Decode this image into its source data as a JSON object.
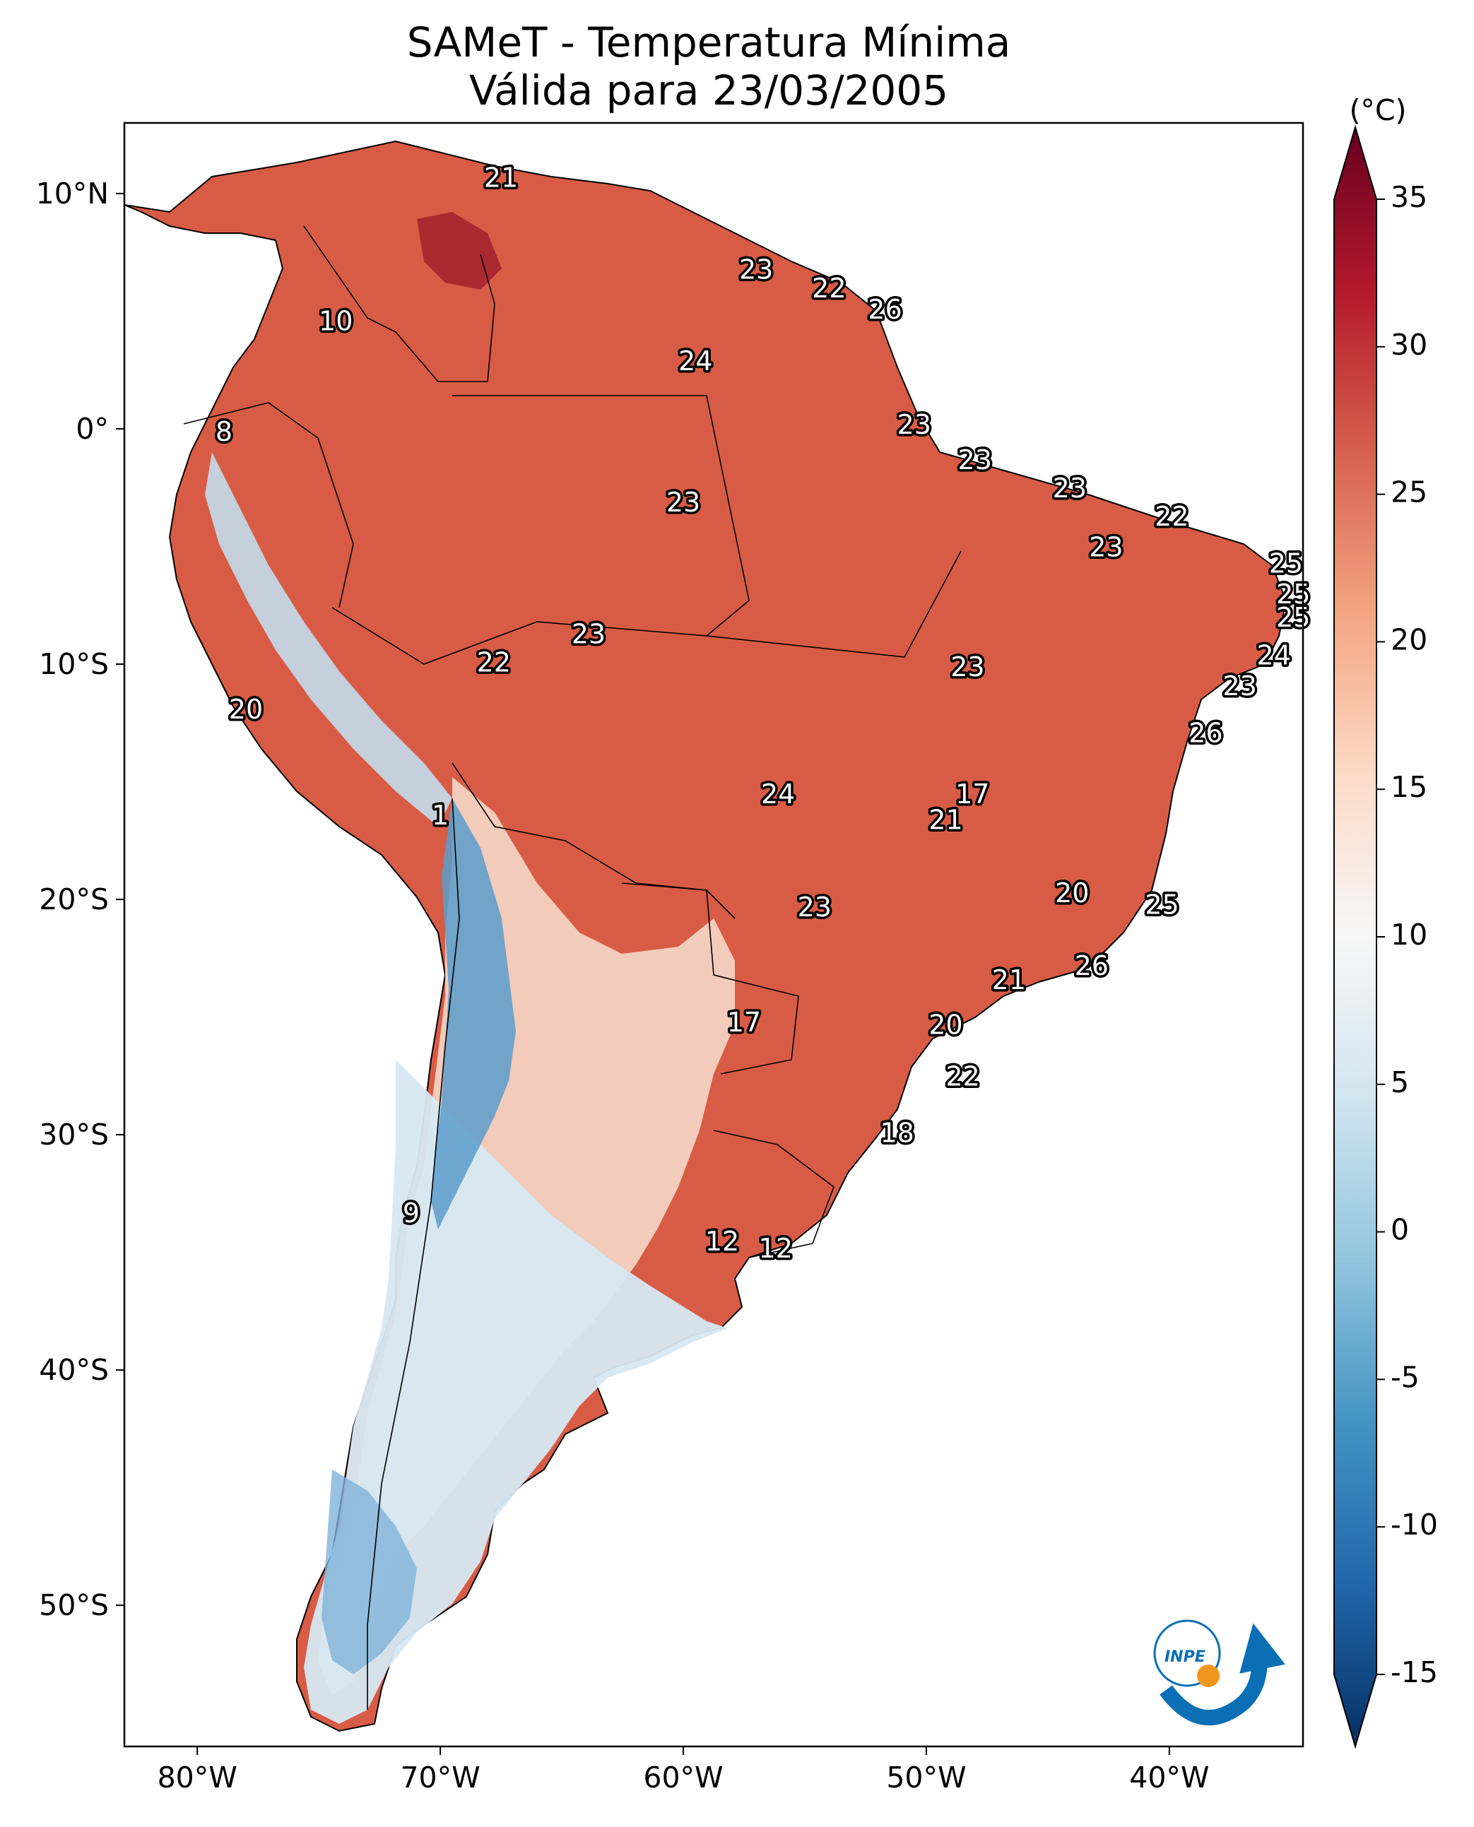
{
  "title": {
    "line1": "SAMeT - Temperatura Mínima",
    "line2": "Válida para 23/03/2005"
  },
  "map": {
    "lon_ticks": [
      {
        "value": -80,
        "label": "80°W"
      },
      {
        "value": -70,
        "label": "70°W"
      },
      {
        "value": -60,
        "label": "60°W"
      },
      {
        "value": -50,
        "label": "50°W"
      },
      {
        "value": -40,
        "label": "40°W"
      }
    ],
    "lat_ticks": [
      {
        "value": 10,
        "label": "10°N"
      },
      {
        "value": 0,
        "label": "0°"
      },
      {
        "value": -10,
        "label": "10°S"
      },
      {
        "value": -20,
        "label": "20°S"
      },
      {
        "value": -30,
        "label": "30°S"
      },
      {
        "value": -40,
        "label": "40°S"
      },
      {
        "value": -50,
        "label": "50°S"
      }
    ],
    "extent": {
      "lon_min": -83,
      "lon_max": -34.5,
      "lat_min": -56,
      "lat_max": 13
    },
    "station_labels": [
      {
        "text": "21",
        "lon": -67.5,
        "lat": 10.6
      },
      {
        "text": "10",
        "lon": -74.3,
        "lat": 4.5
      },
      {
        "text": "8",
        "lon": -78.9,
        "lat": -0.2
      },
      {
        "text": "23",
        "lon": -57.0,
        "lat": 6.7
      },
      {
        "text": "22",
        "lon": -54.0,
        "lat": 5.9
      },
      {
        "text": "26",
        "lon": -51.7,
        "lat": 5.0
      },
      {
        "text": "24",
        "lon": -59.5,
        "lat": 2.8
      },
      {
        "text": "23",
        "lon": -50.5,
        "lat": 0.1
      },
      {
        "text": "23",
        "lon": -48.0,
        "lat": -1.4
      },
      {
        "text": "23",
        "lon": -60.0,
        "lat": -3.2
      },
      {
        "text": "23",
        "lon": -44.1,
        "lat": -2.6
      },
      {
        "text": "22",
        "lon": -39.9,
        "lat": -3.8
      },
      {
        "text": "23",
        "lon": -42.6,
        "lat": -5.1
      },
      {
        "text": "25",
        "lon": -35.2,
        "lat": -5.8
      },
      {
        "text": "25",
        "lon": -34.9,
        "lat": -7.1
      },
      {
        "text": "25",
        "lon": -34.9,
        "lat": -8.1
      },
      {
        "text": "24",
        "lon": -35.7,
        "lat": -9.7
      },
      {
        "text": "23",
        "lon": -37.1,
        "lat": -11.0
      },
      {
        "text": "26",
        "lon": -38.5,
        "lat": -13.0
      },
      {
        "text": "23",
        "lon": -63.9,
        "lat": -8.8
      },
      {
        "text": "22",
        "lon": -67.8,
        "lat": -10.0
      },
      {
        "text": "23",
        "lon": -48.3,
        "lat": -10.2
      },
      {
        "text": "20",
        "lon": -78.0,
        "lat": -12.0
      },
      {
        "text": "1",
        "lon": -70.0,
        "lat": -16.5
      },
      {
        "text": "24",
        "lon": -56.1,
        "lat": -15.6
      },
      {
        "text": "17",
        "lon": -48.1,
        "lat": -15.6
      },
      {
        "text": "21",
        "lon": -49.2,
        "lat": -16.7
      },
      {
        "text": "23",
        "lon": -54.6,
        "lat": -20.4
      },
      {
        "text": "20",
        "lon": -44.0,
        "lat": -19.8
      },
      {
        "text": "25",
        "lon": -40.3,
        "lat": -20.3
      },
      {
        "text": "26",
        "lon": -43.2,
        "lat": -22.9
      },
      {
        "text": "21",
        "lon": -46.6,
        "lat": -23.5
      },
      {
        "text": "17",
        "lon": -57.5,
        "lat": -25.3
      },
      {
        "text": "20",
        "lon": -49.2,
        "lat": -25.4
      },
      {
        "text": "22",
        "lon": -48.5,
        "lat": -27.6
      },
      {
        "text": "18",
        "lon": -51.2,
        "lat": -30.0
      },
      {
        "text": "9",
        "lon": -71.2,
        "lat": -33.4
      },
      {
        "text": "12",
        "lon": -58.4,
        "lat": -34.6
      },
      {
        "text": "12",
        "lon": -56.2,
        "lat": -34.9
      }
    ]
  },
  "colorbar": {
    "unit": "(°C)",
    "min": -15,
    "max": 35,
    "ticks": [
      "35",
      "30",
      "25",
      "20",
      "15",
      "10",
      "5",
      "0",
      "-5",
      "-10",
      "-15"
    ],
    "colors": [
      "#053061",
      "#2166ac",
      "#4393c3",
      "#92c5de",
      "#d1e5f0",
      "#f7f7f7",
      "#fddbc7",
      "#f4a582",
      "#d6604d",
      "#b2182b",
      "#67001f"
    ]
  },
  "logo": {
    "text": "INPE",
    "colors": {
      "blue": "#0a6fb5",
      "orange": "#f0961e"
    }
  }
}
